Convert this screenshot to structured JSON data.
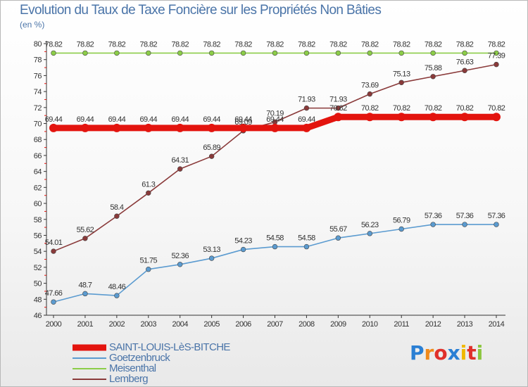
{
  "header": {
    "title": "Evolution du Taux de Taxe Foncière sur les Propriétés Non Bâties",
    "subtitle": "(en %)"
  },
  "logo": {
    "text": "Proxiti",
    "letters": [
      "P",
      "r",
      "o",
      "x",
      "i",
      "t",
      "i"
    ],
    "colors": [
      "#2a7fd4",
      "#f08a1c",
      "#e0302a",
      "#2a7fd4",
      "#f0b800",
      "#e0302a",
      "#8cc63f"
    ]
  },
  "chart_data": {
    "type": "line",
    "title": "Evolution du Taux de Taxe Foncière sur les Propriétés Non Bâties",
    "ylabel": "(en %)",
    "xlabel": "",
    "x": [
      "2000",
      "2001",
      "2002",
      "2003",
      "2004",
      "2005",
      "2006",
      "2007",
      "2008",
      "2009",
      "2010",
      "2011",
      "2012",
      "2013",
      "2014"
    ],
    "ylim": [
      46,
      80
    ],
    "yticks": [
      "46",
      "48",
      "50",
      "52",
      "54",
      "56",
      "58",
      "60",
      "62",
      "64",
      "66",
      "68",
      "70",
      "72",
      "74",
      "76",
      "78",
      "80"
    ],
    "grid": false,
    "legend_position": "bottom-left",
    "series": [
      {
        "name": "SAINT-LOUIS-LèS-BITCHE",
        "color": "#e3140e",
        "emphasis": true,
        "values": [
          69.44,
          69.44,
          69.44,
          69.44,
          69.44,
          69.44,
          69.44,
          69.44,
          69.44,
          70.82,
          70.82,
          70.82,
          70.82,
          70.82,
          70.82
        ],
        "labels": [
          "69.44",
          "69.44",
          "69.44",
          "69.44",
          "69.44",
          "69.44",
          "69.44",
          "69.44",
          "69.44",
          "70.82",
          "70.82",
          "70.82",
          "70.82",
          "70.82",
          "70.82"
        ]
      },
      {
        "name": "Goetzenbruck",
        "color": "#5b9bd0",
        "emphasis": false,
        "values": [
          47.66,
          48.7,
          48.46,
          51.75,
          52.36,
          53.13,
          54.23,
          54.58,
          54.58,
          55.67,
          56.23,
          56.79,
          57.36,
          57.36,
          57.36
        ],
        "labels": [
          "47.66",
          "48.7",
          "48.46",
          "51.75",
          "52.36",
          "53.13",
          "54.23",
          "54.58",
          "54.58",
          "55.67",
          "56.23",
          "56.79",
          "57.36",
          "57.36",
          "57.36"
        ]
      },
      {
        "name": "Meisenthal",
        "color": "#8ccd48",
        "emphasis": false,
        "values": [
          78.82,
          78.82,
          78.82,
          78.82,
          78.82,
          78.82,
          78.82,
          78.82,
          78.82,
          78.82,
          78.82,
          78.82,
          78.82,
          78.82,
          78.82
        ],
        "labels": [
          "78.82",
          "78.82",
          "78.82",
          "78.82",
          "78.82",
          "78.82",
          "78.82",
          "78.82",
          "78.82",
          "78.82",
          "78.82",
          "78.82",
          "78.82",
          "78.82",
          "78.82"
        ]
      },
      {
        "name": "Lemberg",
        "color": "#8a3a3a",
        "emphasis": false,
        "values": [
          54.01,
          55.62,
          58.4,
          61.3,
          64.31,
          65.89,
          69.09,
          70.19,
          71.93,
          71.93,
          73.69,
          75.13,
          75.88,
          76.63,
          77.39
        ],
        "labels": [
          "54.01",
          "55.62",
          "58.4",
          "61.3",
          "64.31",
          "65.89",
          "69.09",
          "70.19",
          "71.93",
          "71.93",
          "73.69",
          "75.13",
          "75.88",
          "76.63",
          "77.39"
        ]
      }
    ]
  }
}
